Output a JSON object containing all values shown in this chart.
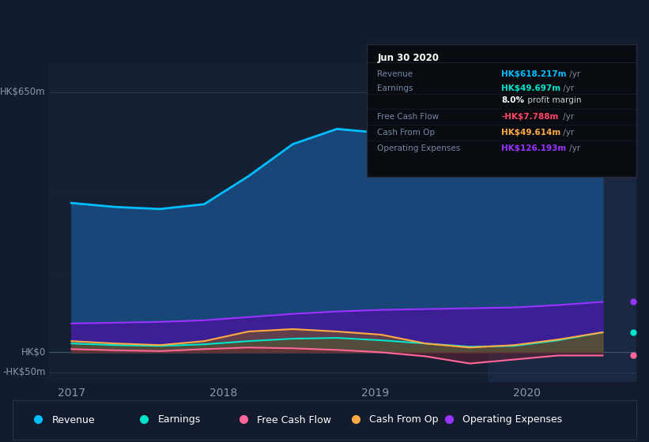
{
  "background_color": "#131c2e",
  "plot_bg_color": "#162033",
  "title": "Jun 30 2020",
  "x_labels": [
    "2017",
    "2018",
    "2019",
    "2020"
  ],
  "ylim": [
    -75,
    720
  ],
  "xlim_start": 2016.85,
  "xlim_end": 2020.72,
  "series": {
    "revenue": {
      "color": "#00bfff",
      "fill_color": "#1a4a80",
      "label": "Revenue",
      "values": [
        373,
        363,
        358,
        370,
        440,
        520,
        558,
        548,
        530,
        490,
        510,
        570,
        618
      ]
    },
    "operating_expenses": {
      "color": "#9933ff",
      "fill_color": "#4d1a99",
      "label": "Operating Expenses",
      "values": [
        72,
        74,
        76,
        80,
        88,
        96,
        102,
        106,
        108,
        110,
        112,
        118,
        126
      ]
    },
    "earnings": {
      "color": "#00e5cc",
      "fill_color": "#005544",
      "label": "Earnings",
      "values": [
        22,
        18,
        16,
        20,
        28,
        34,
        36,
        30,
        22,
        14,
        16,
        30,
        50
      ]
    },
    "cash_from_op": {
      "color": "#ffaa44",
      "fill_color": "#7a5520",
      "label": "Cash From Op",
      "values": [
        28,
        22,
        18,
        28,
        52,
        58,
        52,
        44,
        22,
        12,
        18,
        32,
        50
      ]
    },
    "free_cash_flow": {
      "color": "#ff6699",
      "fill_color": "#882244",
      "label": "Free Cash Flow",
      "values": [
        8,
        5,
        3,
        8,
        12,
        10,
        6,
        0,
        -10,
        -28,
        -18,
        -8,
        -8
      ]
    }
  },
  "highlight_x_start": 2019.75,
  "highlight_x_end": 2020.72,
  "text_color": "#8899aa",
  "grid_color": "#1e3a5a",
  "zero_line_color": "#ccddee",
  "legend_items": [
    {
      "label": "Revenue",
      "color": "#00bfff"
    },
    {
      "label": "Earnings",
      "color": "#00e5cc"
    },
    {
      "label": "Free Cash Flow",
      "color": "#ff6699"
    },
    {
      "label": "Cash From Op",
      "color": "#ffaa44"
    },
    {
      "label": "Operating Expenses",
      "color": "#9933ff"
    }
  ],
  "tooltip": {
    "bg_color": "#080c10",
    "border_color": "#2a2a3a",
    "title": "Jun 30 2020",
    "title_color": "#ffffff",
    "rows": [
      {
        "label": "Revenue",
        "value": "HK$618.217m",
        "suffix": " /yr",
        "value_color": "#00bfff"
      },
      {
        "label": "Earnings",
        "value": "HK$49.697m",
        "suffix": " /yr",
        "value_color": "#00e5cc"
      },
      {
        "label": "",
        "value": "8.0%",
        "suffix": " profit margin",
        "value_color": "#ffffff",
        "suffix_color": "#cccccc"
      },
      {
        "label": "Free Cash Flow",
        "value": "-HK$7.788m",
        "suffix": " /yr",
        "value_color": "#ff4466"
      },
      {
        "label": "Cash From Op",
        "value": "HK$49.614m",
        "suffix": " /yr",
        "value_color": "#ffaa44"
      },
      {
        "label": "Operating Expenses",
        "value": "HK$126.193m",
        "suffix": " /yr",
        "value_color": "#9933ff"
      }
    ]
  }
}
